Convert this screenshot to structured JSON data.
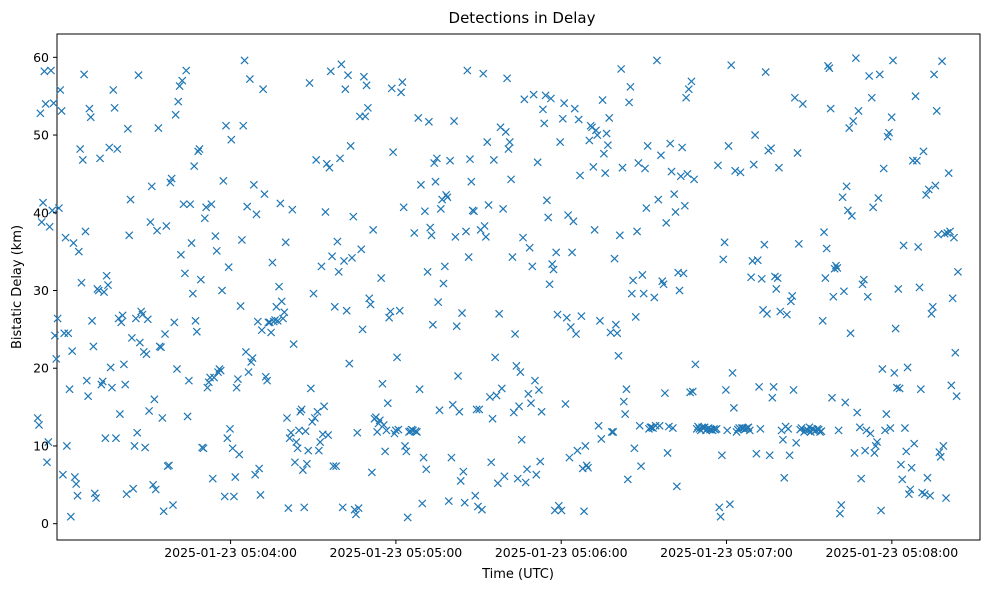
{
  "chart_data": {
    "type": "scatter",
    "title": "Detections in Delay",
    "xlabel": "Time (UTC)",
    "ylabel": "Bistatic Delay (km)",
    "marker": "x",
    "color": "#1f77b4",
    "grid": false,
    "x_start": "2025-01-23 05:02:50",
    "x_end": "2025-01-23 05:08:24",
    "xlim": [
      "2025-01-23 05:02:57",
      "2025-01-23 05:08:32"
    ],
    "ylim": [
      -2.1,
      63
    ],
    "x_ticks": [
      {
        "value": "2025-01-23 05:04:00",
        "label": "2025-01-23 05:04:00"
      },
      {
        "value": "2025-01-23 05:05:00",
        "label": "2025-01-23 05:05:00"
      },
      {
        "value": "2025-01-23 05:06:00",
        "label": "2025-01-23 05:06:00"
      },
      {
        "value": "2025-01-23 05:07:00",
        "label": "2025-01-23 05:07:00"
      },
      {
        "value": "2025-01-23 05:08:00",
        "label": "2025-01-23 05:08:00"
      }
    ],
    "y_ticks": [
      0,
      10,
      20,
      30,
      40,
      50,
      60
    ],
    "series": [
      {
        "values": [
          13.6,
          12.7,
          52.8,
          38.8,
          41.3,
          58.2,
          54.0,
          7.9,
          10.5,
          38.2,
          58.3,
          40.3,
          54.1,
          24.2,
          21.2,
          26.4,
          40.6,
          55.8,
          53.1,
          6.3,
          24.5,
          36.8,
          10.0,
          24.5,
          17.3,
          0.9,
          22.2,
          36.1,
          6.0,
          5.1,
          3.6,
          35.0,
          48.2,
          31.0,
          46.8,
          57.8,
          37.6,
          18.4,
          16.4,
          53.4,
          52.3,
          26.1,
          22.8,
          3.9,
          3.3,
          30.2,
          30.0,
          47.0,
          17.9,
          18.3,
          29.8,
          11.0,
          31.9,
          30.7,
          48.4,
          20.1,
          17.5,
          55.8,
          53.5,
          11.0,
          48.2,
          26.4,
          14.1,
          25.9,
          26.8,
          20.5,
          17.9,
          3.8,
          50.8,
          37.1,
          41.7,
          23.9,
          4.5,
          10.0,
          26.4,
          11.7,
          57.7,
          23.3,
          27.3,
          26.9,
          22.1,
          9.8,
          21.8,
          26.3,
          14.5,
          38.8,
          43.4,
          5.0,
          16.0,
          4.4,
          37.7,
          50.9,
          22.8,
          22.7,
          13.6,
          1.6,
          24.4,
          38.3,
          7.4,
          7.5,
          43.9,
          44.4,
          2.4,
          25.9,
          52.6,
          19.9,
          54.3,
          56.3,
          34.6,
          57.0,
          41.1,
          32.2,
          58.3,
          13.8,
          18.4,
          41.1,
          36.1,
          29.6,
          46.0,
          26.1,
          24.7,
          47.9,
          48.2,
          31.4,
          9.8,
          9.7,
          39.3,
          40.7,
          17.5,
          18.2,
          18.8,
          41.1,
          5.8,
          18.8,
          37.0,
          35.1,
          19.5,
          19.9,
          19.7,
          30.0,
          44.1,
          3.5,
          51.2,
          11.0,
          33.0,
          12.2,
          49.4,
          9.7,
          3.5,
          6.0,
          17.5,
          18.6,
          8.9,
          28.0,
          36.5,
          51.2,
          59.6,
          22.1,
          40.8,
          19.5,
          57.2,
          20.8,
          21.3,
          43.6,
          6.3,
          39.8,
          26.0,
          7.1,
          3.7,
          24.9,
          55.9,
          42.4,
          18.9,
          18.4,
          25.9,
          25.9,
          24.6,
          33.6,
          26.0,
          26.2,
          27.9,
          26.1,
          30.5,
          41.2,
          28.6,
          26.4,
          27.2,
          36.2,
          13.6,
          2.0,
          11.0,
          11.7,
          40.4,
          23.1,
          7.9,
          10.5,
          9.7,
          12.0,
          14.4,
          14.7,
          6.9,
          2.1,
          11.9,
          7.7,
          9.4,
          56.7,
          17.4,
          13.1,
          29.6,
          13.6,
          46.8,
          14.4,
          9.4,
          10.5,
          33.1,
          11.5,
          15.1,
          40.1,
          46.3,
          11.4,
          45.8,
          58.2,
          34.4,
          7.4,
          27.9,
          7.4,
          36.3,
          32.4,
          47.0,
          59.1,
          2.1,
          33.8,
          55.9,
          27.4,
          57.7,
          20.6,
          48.6,
          34.2,
          39.5,
          1.8,
          1.2,
          11.7,
          2.0,
          52.4,
          35.3,
          25.0,
          57.5,
          52.4,
          56.4,
          53.5,
          29.0,
          28.2,
          6.6,
          37.8,
          13.5,
          13.7,
          11.8,
          12.9,
          13.3,
          31.6,
          18.0,
          12.7,
          9.3,
          12.0,
          15.5,
          26.5,
          27.3,
          56.0,
          47.8,
          11.6,
          12.0,
          21.4,
          12.1,
          27.4,
          55.5,
          56.8,
          40.7,
          10.0,
          9.3,
          0.8,
          11.8,
          11.9,
          12.1,
          12.0,
          37.4,
          11.9,
          11.8,
          52.2,
          17.3,
          43.6,
          2.6,
          8.5,
          40.2,
          7.0,
          32.4,
          51.7,
          38.1,
          37.1,
          25.6,
          46.4,
          44.0,
          47.0,
          28.5,
          14.6,
          40.5,
          41.7,
          30.9,
          33.1,
          42.3,
          42.0,
          2.9,
          46.7,
          8.5,
          15.3,
          51.8,
          36.9,
          25.4,
          19.0,
          14.4,
          5.5,
          27.1,
          6.7,
          2.7,
          37.6,
          58.3,
          34.3,
          46.9,
          44.0,
          40.3,
          40.2,
          3.6,
          14.7,
          2.2,
          14.7,
          37.8,
          1.8,
          57.9,
          38.3,
          36.9,
          49.1,
          41.0,
          16.3,
          7.9,
          13.5,
          46.8,
          21.4,
          16.5,
          5.2,
          27.0,
          51.0,
          17.4,
          40.5,
          6.1,
          50.4,
          57.3,
          48.2,
          49.1,
          44.3,
          34.3,
          14.3,
          24.4,
          20.3,
          5.8,
          15.1,
          19.5,
          10.8,
          36.8,
          54.6,
          5.3,
          7.0,
          16.7,
          35.5,
          15.5,
          33.1,
          55.2,
          18.4,
          6.3,
          46.5,
          17.2,
          8.0,
          14.4,
          53.3,
          51.5,
          55.1,
          41.6,
          39.4,
          30.8,
          54.7,
          33.4,
          32.7,
          1.7,
          34.9,
          26.9,
          2.3,
          49.1,
          1.7,
          52.1,
          54.1,
          15.4,
          26.5,
          39.7,
          8.5,
          25.3,
          34.9,
          38.9,
          53.4,
          24.4,
          9.4,
          52.0,
          44.8,
          26.7,
          7.1,
          1.6,
          10.0,
          7.5,
          7.2,
          49.3,
          51.2,
          51.0,
          45.9,
          37.8,
          50.6,
          50.0,
          12.6,
          26.1,
          10.9,
          54.5,
          47.6,
          45.1,
          50.2,
          48.7,
          52.2,
          24.6,
          11.8,
          11.8,
          34.1,
          25.6,
          24.5,
          21.6,
          37.1,
          58.5,
          45.8,
          15.7,
          14.1,
          17.3,
          5.7,
          54.2,
          56.2,
          29.6,
          31.3,
          9.7,
          26.6,
          37.6,
          46.4,
          12.6,
          7.4,
          32.0,
          29.6,
          45.7,
          40.6,
          48.6,
          12.2,
          12.4,
          12.4,
          12.3,
          29.1,
          12.6,
          59.6,
          41.7,
          12.6,
          47.4,
          31.2,
          30.8,
          16.8,
          38.7,
          9.1,
          12.5,
          48.9,
          45.3,
          12.3,
          42.4,
          40.1,
          4.8,
          32.3,
          30.0,
          44.7,
          48.4,
          32.2,
          40.9,
          54.8,
          45.0,
          55.9,
          16.9,
          56.9,
          17.0,
          44.3,
          20.5,
          12.2,
          12.5,
          12.2,
          12.0,
          12.4,
          12.3,
          12.4,
          12.0,
          12.2,
          12.3,
          12.1,
          12.1,
          12.0,
          12.2,
          12.1,
          12.2,
          46.1,
          2.1,
          0.9,
          8.8,
          34.0,
          36.2,
          17.2,
          12.0,
          48.6,
          2.5,
          59.0,
          19.4,
          14.9,
          45.4,
          11.8,
          12.1,
          12.3,
          45.2,
          12.3,
          12.3,
          12.1,
          12.2,
          12.3,
          12.4,
          12.0,
          31.7,
          33.8,
          46.2,
          50.0,
          9.0,
          33.9,
          17.6,
          12.2,
          31.5,
          27.5,
          35.9,
          58.1,
          27.0,
          48.0,
          8.8,
          48.3,
          16.2,
          17.6,
          31.8,
          30.2,
          31.6,
          45.8,
          27.3,
          12.0,
          10.8,
          5.9,
          12.5,
          26.9,
          12.2,
          8.8,
          28.6,
          29.3,
          17.2,
          54.8,
          10.4,
          47.7,
          36.0,
          12.1,
          12.3,
          54.0,
          11.8,
          12.0,
          12.1,
          12.0,
          12.4,
          11.8,
          12.2,
          12.1,
          11.9,
          12.0,
          12.2,
          12.1,
          11.8,
          11.9,
          26.1,
          37.5,
          31.6,
          35.4,
          58.9,
          58.6,
          53.4,
          16.2,
          29.2,
          32.8,
          33.2,
          32.9,
          12.0,
          1.3,
          2.4,
          42.0,
          29.9,
          15.6,
          43.4,
          40.3,
          50.9,
          24.5,
          39.6,
          51.8,
          9.1,
          59.9,
          14.3,
          53.1,
          12.4,
          5.8,
          30.8,
          31.4,
          9.4,
          12.0,
          29.2,
          57.6,
          11.6,
          54.8,
          40.7,
          9.1,
          10.0,
          10.5,
          41.9,
          57.8,
          1.7,
          19.9,
          45.7,
          12.0,
          14.1,
          49.8,
          50.3,
          12.3,
          52.3,
          59.6,
          19.4,
          25.1,
          17.5,
          30.2,
          17.4,
          7.6,
          5.7,
          35.8,
          12.3,
          9.3,
          20.1,
          3.8,
          4.4,
          7.2,
          46.7,
          10.3,
          55.0,
          46.7,
          35.6,
          30.4,
          17.3,
          4.0,
          47.9,
          3.8,
          42.3,
          5.9,
          43.0,
          3.6,
          27.0,
          27.9,
          57.8,
          43.5,
          53.1,
          37.2,
          9.2,
          8.6,
          59.5,
          10.0,
          37.3,
          3.3,
          37.4,
          45.1,
          37.6,
          17.8,
          29.0,
          36.8,
          22.0,
          16.4,
          32.4
        ]
      }
    ]
  }
}
